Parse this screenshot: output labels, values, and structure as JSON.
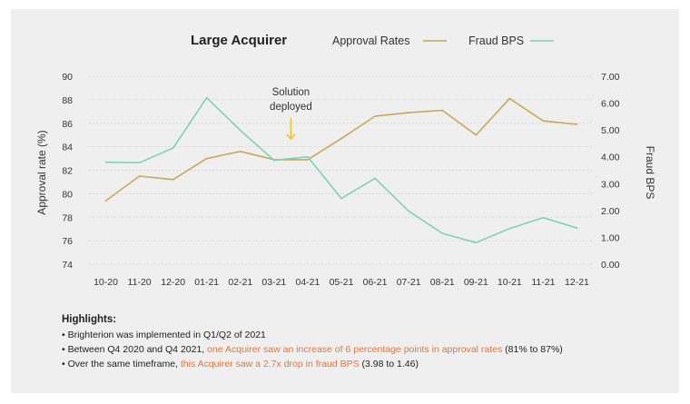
{
  "colors": {
    "approval": "#c9a75a",
    "fraud": "#7fd1b9",
    "accent": "#e8733a",
    "background": "#efefef",
    "annotation_arrow": "#f0c030"
  },
  "chart_data": {
    "type": "line",
    "title": "Large Acquirer",
    "categories": [
      "10-20",
      "11-20",
      "12-20",
      "01-21",
      "02-21",
      "03-21",
      "04-21",
      "05-21",
      "06-21",
      "07-21",
      "08-21",
      "09-21",
      "10-21",
      "11-21",
      "12-21"
    ],
    "series": [
      {
        "name": "Approval Rates",
        "axis": "left",
        "values": [
          79.4,
          81.5,
          81.2,
          83.0,
          83.6,
          82.9,
          82.9,
          84.7,
          86.6,
          86.9,
          87.1,
          85.0,
          88.1,
          86.2,
          85.9
        ]
      },
      {
        "name": "Fraud BPS",
        "axis": "right",
        "values": [
          3.8,
          3.78,
          4.33,
          6.2,
          4.98,
          3.87,
          4.0,
          2.45,
          3.2,
          1.98,
          1.15,
          0.8,
          1.33,
          1.73,
          1.35
        ]
      }
    ],
    "ylabel": "Approval rate (%)",
    "y2label": "Fraud BPS",
    "ylim": [
      74,
      90
    ],
    "y_ticks": [
      "90",
      "88",
      "86",
      "84",
      "82",
      "80",
      "78",
      "76",
      "74"
    ],
    "y2lim": [
      0,
      7
    ],
    "y2_ticks": [
      "7.00",
      "6.00",
      "5.00",
      "4.00",
      "3.00",
      "2.00",
      "1.00",
      "0.00"
    ],
    "grid": true,
    "legend_position": "top",
    "annotation": {
      "lines": [
        "Solution",
        "deployed"
      ],
      "category_position": 5.5
    }
  },
  "highlights": {
    "heading": "Highlights:",
    "items": [
      {
        "parts": [
          {
            "text": "Brighterion was implemented in Q1/Q2 of 2021",
            "accent": false
          }
        ]
      },
      {
        "parts": [
          {
            "text": "Between Q4 2020 and Q4 2021, ",
            "accent": false
          },
          {
            "text": "one Acquirer saw an increase of 6 percentage points in approval rates",
            "accent": true
          },
          {
            "text": " (81% to 87%)",
            "accent": false
          }
        ]
      },
      {
        "parts": [
          {
            "text": "Over the same timeframe, ",
            "accent": false
          },
          {
            "text": "this Acquirer saw a 2.7x drop in fraud BPS",
            "accent": true
          },
          {
            "text": " (3.98 to 1.46)",
            "accent": false
          }
        ]
      }
    ]
  }
}
